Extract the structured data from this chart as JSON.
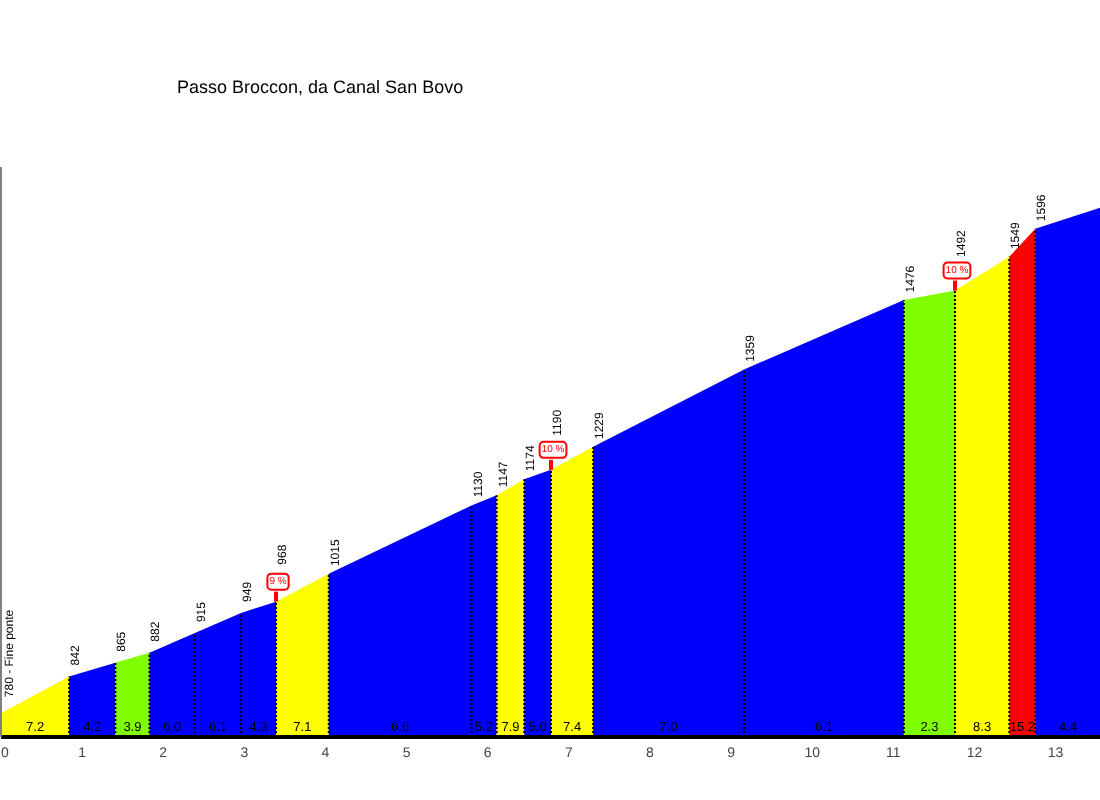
{
  "chart_data": {
    "type": "area",
    "title": "Passo Broccon, da Canal San Bovo",
    "series": [
      {
        "color": "#ffff00",
        "x": [
          0,
          0.84
        ],
        "values": [
          780,
          842
        ],
        "value_labels": [
          "780 - Fine ponte",
          "842"
        ]
      },
      {
        "color": "#0000ff",
        "x": [
          0.84,
          1.41
        ],
        "values": [
          842,
          865
        ],
        "value_labels": [
          null,
          "865"
        ]
      },
      {
        "color": "#80ff00",
        "x": [
          1.41,
          1.83
        ],
        "values": [
          865,
          882
        ],
        "value_labels": [
          null,
          "882"
        ]
      },
      {
        "color": "#0000ff",
        "x": [
          1.83,
          2.39,
          2.96,
          3.39
        ],
        "values": [
          882,
          915,
          949,
          968
        ],
        "value_labels": [
          null,
          "915",
          "949",
          "968"
        ]
      },
      {
        "color": "#ffff00",
        "x": [
          3.39,
          4.04
        ],
        "values": [
          968,
          1015
        ],
        "value_labels": [
          null,
          "1015"
        ]
      },
      {
        "color": "#0000ff",
        "x": [
          4.04,
          5.8,
          6.11
        ],
        "values": [
          1015,
          1130,
          1147
        ],
        "value_labels": [
          null,
          "1130",
          "1147"
        ]
      },
      {
        "color": "#ffff00",
        "x": [
          6.11,
          6.45
        ],
        "values": [
          1147,
          1174
        ],
        "value_labels": [
          null,
          "1174"
        ]
      },
      {
        "color": "#0000ff",
        "x": [
          6.45,
          6.78
        ],
        "values": [
          1174,
          1190
        ],
        "value_labels": [
          null,
          "1190"
        ]
      },
      {
        "color": "#ffff00",
        "x": [
          6.78,
          7.3
        ],
        "values": [
          1190,
          1229
        ],
        "value_labels": [
          null,
          "1229"
        ]
      },
      {
        "color": "#0000ff",
        "x": [
          7.3,
          9.16,
          11.13
        ],
        "values": [
          1229,
          1359,
          1476
        ],
        "value_labels": [
          null,
          "1359",
          "1476"
        ]
      },
      {
        "color": "#80ff00",
        "x": [
          11.13,
          11.76
        ],
        "values": [
          1476,
          1492
        ],
        "value_labels": [
          null,
          "1492"
        ]
      },
      {
        "color": "#ffff00",
        "x": [
          11.76,
          12.43
        ],
        "values": [
          1492,
          1549
        ],
        "value_labels": [
          null,
          "1549"
        ]
      },
      {
        "color": "#ff0000",
        "x": [
          12.43,
          12.75
        ],
        "values": [
          1549,
          1596
        ],
        "value_labels": [
          null,
          "1596"
        ]
      },
      {
        "color": "#0000ff",
        "x": [
          12.75,
          13.56
        ],
        "values": [
          1596,
          1632
        ],
        "value_labels": [
          null,
          null
        ]
      }
    ],
    "annotations": [
      "7.2",
      "4.2",
      "3.9",
      "6.0",
      "6.1",
      "4.3",
      "7.1",
      "6.6",
      "5.2",
      "7.9",
      "5.0",
      "7.4",
      "7.0",
      "6.1",
      "2.3",
      "8.3",
      "15.2",
      "4.4",
      {
        "text": "9 %",
        "x": 3.39,
        "y": 968
      },
      {
        "text": "10 %",
        "x": 6.78,
        "y": 1190
      },
      {
        "text": "10 %",
        "x": 11.76,
        "y": 1492
      }
    ],
    "xlim": [
      0,
      13.56
    ],
    "xticks": [
      0,
      1,
      2,
      3,
      4,
      5,
      6,
      7,
      8,
      9,
      10,
      11,
      12,
      13
    ]
  }
}
